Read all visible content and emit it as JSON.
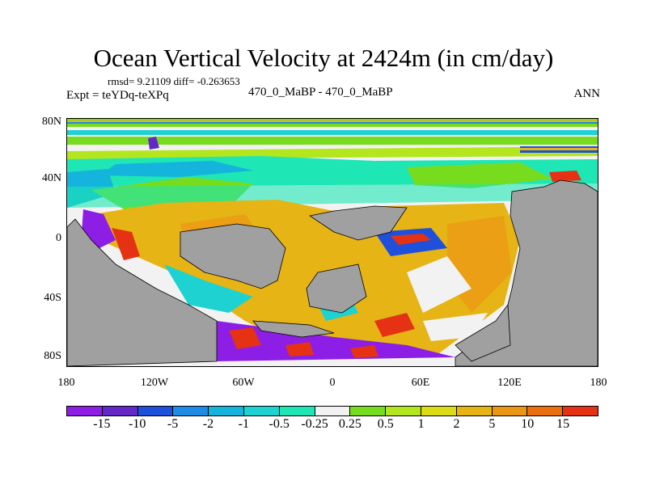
{
  "title": "Ocean Vertical Velocity at 2424m (in cm/day)",
  "stats": "rmsd= 9.21109 diff= -0.263653",
  "expt": "Expt = teYDq-teXPq",
  "center_label": "470_0_MaBP - 470_0_MaBP",
  "season": "ANN",
  "map": {
    "lat_labels": [
      "80N",
      "40N",
      "0",
      "40S",
      "80S"
    ],
    "lon_labels": [
      "180",
      "120W",
      "60W",
      "0",
      "60E",
      "120E",
      "180"
    ],
    "lat_range": [
      -90,
      90
    ],
    "lon_range": [
      -180,
      180
    ],
    "land_color": "#a0a0a0"
  },
  "colorbar": {
    "colors": [
      "#8c1ee6",
      "#6428c8",
      "#1e50dc",
      "#1e8ce6",
      "#14b4dc",
      "#1ed2d2",
      "#1ee6b4",
      "#f2f2f2",
      "#78dc1e",
      "#b4e61e",
      "#dcdc14",
      "#e6b414",
      "#eb9614",
      "#eb6e0f",
      "#e63214"
    ],
    "labels": [
      "-15",
      "-10",
      "-5",
      "-2",
      "-1",
      "-0.5",
      "-0.25",
      "0.25",
      "0.5",
      "1",
      "2",
      "5",
      "10",
      "15"
    ]
  }
}
